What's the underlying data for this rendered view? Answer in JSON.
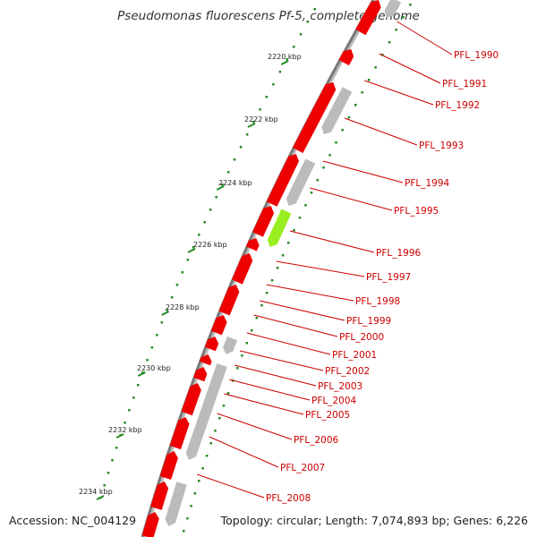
{
  "title": "Pseudomonas fluorescens Pf-5, complete genome",
  "accession": "Accession: NC_004129",
  "summary": "Topology: circular; Length: 7,074,893 bp; Genes: 6,226",
  "colors": {
    "forward": "#ee0000",
    "reverse": "#bbbbbb",
    "highlight": "#99ee22",
    "backbone": "#777777",
    "ticks": "#228b22",
    "label": "#cc0000"
  },
  "kbp_labels": [
    "2220 kbp",
    "2222 kbp",
    "2224 kbp",
    "2226 kbp",
    "2228 kbp",
    "2230 kbp",
    "2232 kbp",
    "2234 kbp"
  ],
  "genes": [
    "PFL_1990",
    "PFL_1991",
    "PFL_1992",
    "PFL_1993",
    "PFL_1994",
    "PFL_1995",
    "PFL_1996",
    "PFL_1997",
    "PFL_1998",
    "PFL_1999",
    "PFL_2000",
    "PFL_2001",
    "PFL_2002",
    "PFL_2003",
    "PFL_2004",
    "PFL_2005",
    "PFL_2006",
    "PFL_2007",
    "PFL_2008"
  ]
}
